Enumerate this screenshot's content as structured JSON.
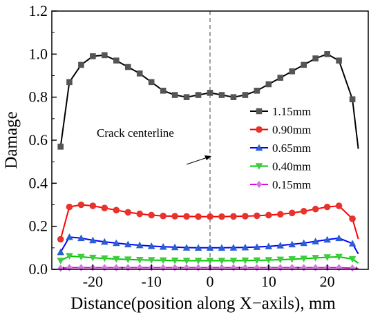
{
  "chart_data": {
    "type": "line",
    "title": "",
    "xlabel": "Distance(position along X−axils), mm",
    "ylabel": "Damage",
    "xlim": [
      -27,
      27
    ],
    "ylim": [
      0.0,
      1.2
    ],
    "xticks": [
      -20,
      -10,
      0,
      10,
      20
    ],
    "xtick_labels": [
      "-20",
      "-10",
      "0",
      "10",
      "20"
    ],
    "yticks": [
      0.0,
      0.2,
      0.4,
      0.6,
      0.8,
      1.0,
      1.2
    ],
    "ytick_labels": [
      "0.0",
      "0.2",
      "0.4",
      "0.6",
      "0.8",
      "1.0",
      "1.2"
    ],
    "grid": false,
    "legend_position": "center-right",
    "annotations": [
      {
        "text": "Crack centerline",
        "x": 0,
        "style": "dashed vertical line with arrow"
      }
    ],
    "series": [
      {
        "name": "1.15mm",
        "color": "#000000",
        "marker": "square",
        "marker_color": "#555555",
        "x": [
          -25.5,
          -24,
          -22,
          -20,
          -18,
          -16,
          -14,
          -12,
          -10,
          -8,
          -6,
          -4,
          -2,
          0,
          2,
          4,
          6,
          8,
          10,
          12,
          14,
          16,
          18,
          20,
          22,
          24.3
        ],
        "y": [
          0.57,
          0.87,
          0.95,
          0.99,
          0.995,
          0.97,
          0.94,
          0.91,
          0.87,
          0.83,
          0.81,
          0.8,
          0.81,
          0.82,
          0.81,
          0.8,
          0.81,
          0.83,
          0.86,
          0.89,
          0.92,
          0.95,
          0.98,
          1.0,
          0.97,
          0.79
        ]
      },
      {
        "name": "0.90mm",
        "color": "#ff0000",
        "marker": "circle",
        "marker_color": "#e8322c",
        "x": [
          -25.5,
          -24,
          -22,
          -20,
          -18,
          -16,
          -14,
          -12,
          -10,
          -8,
          -6,
          -4,
          -2,
          0,
          2,
          4,
          6,
          8,
          10,
          12,
          14,
          16,
          18,
          20,
          22,
          24.3
        ],
        "y": [
          0.14,
          0.29,
          0.3,
          0.295,
          0.285,
          0.275,
          0.265,
          0.258,
          0.252,
          0.248,
          0.247,
          0.246,
          0.245,
          0.245,
          0.245,
          0.246,
          0.247,
          0.249,
          0.252,
          0.256,
          0.262,
          0.27,
          0.28,
          0.29,
          0.295,
          0.235
        ]
      },
      {
        "name": "0.65mm",
        "color": "#0000ff",
        "marker": "triangle-up",
        "marker_color": "#2a5fd0",
        "x": [
          -25.5,
          -24,
          -22,
          -20,
          -18,
          -16,
          -14,
          -12,
          -10,
          -8,
          -6,
          -4,
          -2,
          0,
          2,
          4,
          6,
          8,
          10,
          12,
          14,
          16,
          18,
          20,
          22,
          24.3
        ],
        "y": [
          0.08,
          0.15,
          0.145,
          0.135,
          0.128,
          0.122,
          0.116,
          0.112,
          0.108,
          0.105,
          0.103,
          0.101,
          0.1,
          0.1,
          0.1,
          0.101,
          0.102,
          0.104,
          0.107,
          0.111,
          0.116,
          0.122,
          0.13,
          0.138,
          0.145,
          0.12
        ]
      },
      {
        "name": "0.40mm",
        "color": "#00c800",
        "marker": "triangle-down",
        "marker_color": "#3ccc3c",
        "x": [
          -25.5,
          -24,
          -22,
          -20,
          -18,
          -16,
          -14,
          -12,
          -10,
          -8,
          -6,
          -4,
          -2,
          0,
          2,
          4,
          6,
          8,
          10,
          12,
          14,
          16,
          18,
          20,
          22,
          24.3
        ],
        "y": [
          0.04,
          0.062,
          0.058,
          0.054,
          0.051,
          0.048,
          0.046,
          0.044,
          0.043,
          0.042,
          0.041,
          0.04,
          0.04,
          0.04,
          0.04,
          0.04,
          0.041,
          0.042,
          0.043,
          0.045,
          0.047,
          0.05,
          0.053,
          0.056,
          0.058,
          0.048
        ]
      },
      {
        "name": "0.15mm",
        "color": "#e600e6",
        "marker": "diamond",
        "marker_color": "#d277e0",
        "x": [
          -25.5,
          -24,
          -22,
          -20,
          -18,
          -16,
          -14,
          -12,
          -10,
          -8,
          -6,
          -4,
          -2,
          0,
          2,
          4,
          6,
          8,
          10,
          12,
          14,
          16,
          18,
          20,
          22,
          24.3
        ],
        "y": [
          0.005,
          0.008,
          0.008,
          0.008,
          0.008,
          0.008,
          0.008,
          0.008,
          0.008,
          0.008,
          0.008,
          0.008,
          0.008,
          0.008,
          0.008,
          0.008,
          0.008,
          0.008,
          0.008,
          0.008,
          0.008,
          0.008,
          0.008,
          0.008,
          0.008,
          0.006
        ]
      }
    ]
  }
}
